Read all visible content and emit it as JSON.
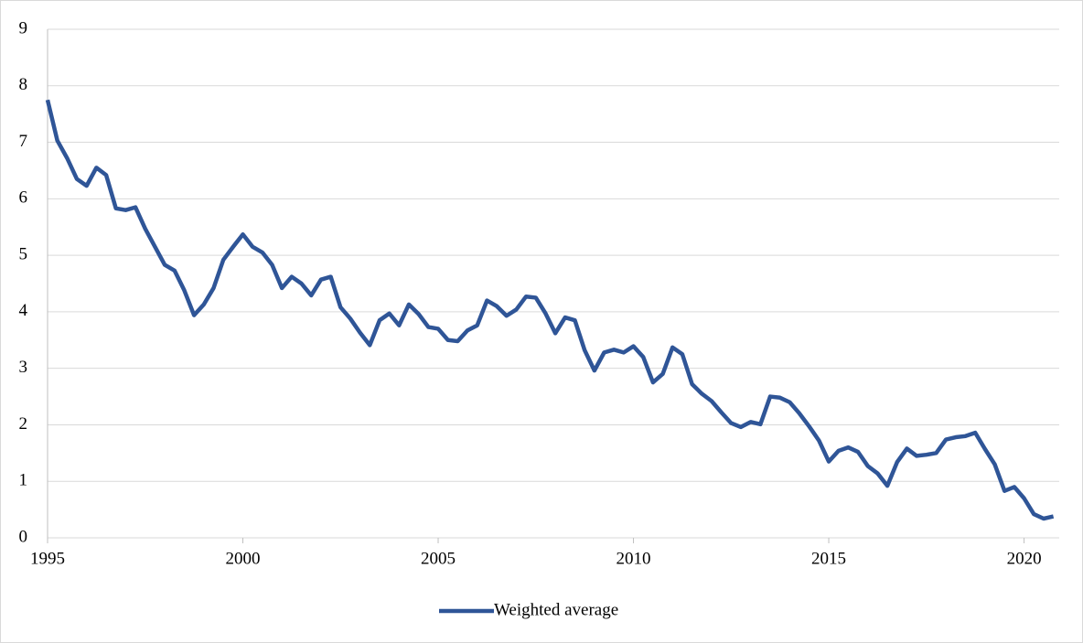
{
  "chart_data": {
    "type": "line",
    "x": [
      1995,
      1995.25,
      1995.5,
      1995.75,
      1996,
      1996.25,
      1996.5,
      1996.75,
      1997,
      1997.25,
      1997.5,
      1997.75,
      1998,
      1998.25,
      1998.5,
      1998.75,
      1999,
      1999.25,
      1999.5,
      1999.75,
      2000,
      2000.25,
      2000.5,
      2000.75,
      2001,
      2001.25,
      2001.5,
      2001.75,
      2002,
      2002.25,
      2002.5,
      2002.75,
      2003,
      2003.25,
      2003.5,
      2003.75,
      2004,
      2004.25,
      2004.5,
      2004.75,
      2005,
      2005.25,
      2005.5,
      2005.75,
      2006,
      2006.25,
      2006.5,
      2006.75,
      2007,
      2007.25,
      2007.5,
      2007.75,
      2008,
      2008.25,
      2008.5,
      2008.75,
      2009,
      2009.25,
      2009.5,
      2009.75,
      2010,
      2010.25,
      2010.5,
      2010.75,
      2011,
      2011.25,
      2011.5,
      2011.75,
      2012,
      2012.25,
      2012.5,
      2012.75,
      2013,
      2013.25,
      2013.5,
      2013.75,
      2014,
      2014.25,
      2014.5,
      2014.75,
      2015,
      2015.25,
      2015.5,
      2015.75,
      2016,
      2016.25,
      2016.5,
      2016.75,
      2017,
      2017.25,
      2017.5,
      2017.75,
      2018,
      2018.25,
      2018.5,
      2018.75,
      2019,
      2019.25,
      2019.5,
      2019.75,
      2020,
      2020.25,
      2020.5,
      2020.75
    ],
    "series": [
      {
        "name": "Weighted average",
        "color": "#2f5597",
        "values": [
          7.75,
          7.03,
          6.72,
          6.35,
          6.23,
          6.55,
          6.42,
          5.83,
          5.8,
          5.85,
          5.47,
          5.15,
          4.83,
          4.73,
          4.38,
          3.94,
          4.13,
          4.42,
          4.92,
          5.15,
          5.37,
          5.15,
          5.05,
          4.83,
          4.42,
          4.62,
          4.5,
          4.29,
          4.57,
          4.62,
          4.08,
          3.88,
          3.63,
          3.41,
          3.85,
          3.97,
          3.76,
          4.13,
          3.96,
          3.73,
          3.7,
          3.5,
          3.48,
          3.67,
          3.76,
          4.2,
          4.1,
          3.93,
          4.04,
          4.27,
          4.25,
          3.97,
          3.62,
          3.9,
          3.85,
          3.32,
          2.96,
          3.28,
          3.33,
          3.28,
          3.39,
          3.2,
          2.75,
          2.9,
          3.37,
          3.25,
          2.72,
          2.55,
          2.42,
          2.22,
          2.03,
          1.96,
          2.05,
          2.01,
          2.5,
          2.48,
          2.4,
          2.2,
          1.97,
          1.72,
          1.35,
          1.54,
          1.6,
          1.52,
          1.27,
          1.14,
          0.92,
          1.34,
          1.58,
          1.45,
          1.47,
          1.5,
          1.74,
          1.78,
          1.8,
          1.86,
          1.57,
          1.3,
          0.83,
          0.9,
          0.7,
          0.42,
          0.34,
          0.38
        ]
      }
    ],
    "xlim": [
      1995,
      2020.9
    ],
    "xticks": [
      1995,
      2000,
      2005,
      2010,
      2015,
      2020
    ],
    "ylim": [
      0,
      9
    ],
    "yticks": [
      0,
      1,
      2,
      3,
      4,
      5,
      6,
      7,
      8,
      9
    ],
    "grid": true,
    "legend": "bottom"
  }
}
